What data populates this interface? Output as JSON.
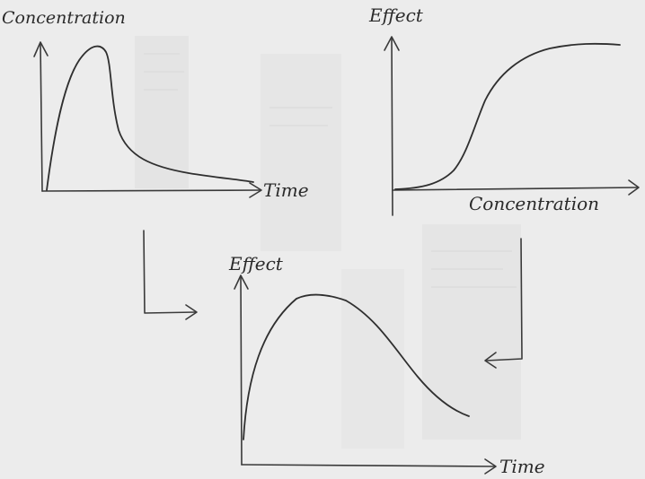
{
  "panels": {
    "concentration_time": {
      "y_label": "Concentration",
      "x_label": "Time"
    },
    "effect_concentration": {
      "y_label": "Effect",
      "x_label": "Concentration"
    },
    "effect_time": {
      "y_label": "Effect",
      "x_label": "Time"
    }
  },
  "colors": {
    "paper": "#ececec",
    "ink": "#2f2f2f"
  }
}
